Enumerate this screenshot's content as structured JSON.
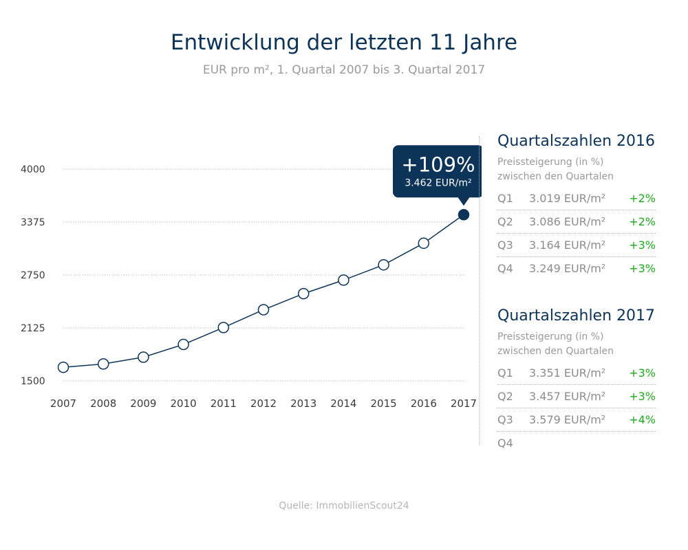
{
  "title": "Entwicklung der letzten 11 Jahre",
  "subtitle": "EUR pro m², 1. Quartal 2007 bis 3. Quartal 2017",
  "source": "Quelle: ImmobilienScout24",
  "colors": {
    "navy": "#0c3358",
    "green": "#1fa81f",
    "grey": "#9a9a9a"
  },
  "chart_data": {
    "type": "line",
    "categories": [
      "2007",
      "2008",
      "2009",
      "2010",
      "2011",
      "2012",
      "2013",
      "2014",
      "2015",
      "2016",
      "2017"
    ],
    "values": [
      1660,
      1700,
      1780,
      1930,
      2130,
      2340,
      2530,
      2690,
      2870,
      3125,
      3462
    ],
    "yticks": [
      "4000",
      "3375",
      "2750",
      "2125",
      "1500"
    ],
    "ylim": [
      1500,
      4000
    ],
    "grid": true,
    "highlight": {
      "index": 10,
      "label": "+109%",
      "value_label": "3.462 EUR/m²"
    }
  },
  "panels": [
    {
      "title": "Quartalszahlen 2016",
      "subtitle_line1": "Preissteigerung (in %)",
      "subtitle_line2": "zwischen den Quartalen",
      "rows": [
        {
          "q": "Q1",
          "value": "3.019 EUR/m²",
          "pct": "+2%"
        },
        {
          "q": "Q2",
          "value": "3.086 EUR/m²",
          "pct": "+2%"
        },
        {
          "q": "Q3",
          "value": "3.164 EUR/m²",
          "pct": "+3%"
        },
        {
          "q": "Q4",
          "value": "3.249 EUR/m²",
          "pct": "+3%"
        }
      ]
    },
    {
      "title": "Quartalszahlen 2017",
      "subtitle_line1": "Preissteigerung (in %)",
      "subtitle_line2": "zwischen den Quartalen",
      "rows": [
        {
          "q": "Q1",
          "value": "3.351 EUR/m²",
          "pct": "+3%"
        },
        {
          "q": "Q2",
          "value": "3.457 EUR/m²",
          "pct": "+3%"
        },
        {
          "q": "Q3",
          "value": "3.579 EUR/m²",
          "pct": "+4%"
        },
        {
          "q": "Q4",
          "value": "",
          "pct": ""
        }
      ]
    }
  ]
}
